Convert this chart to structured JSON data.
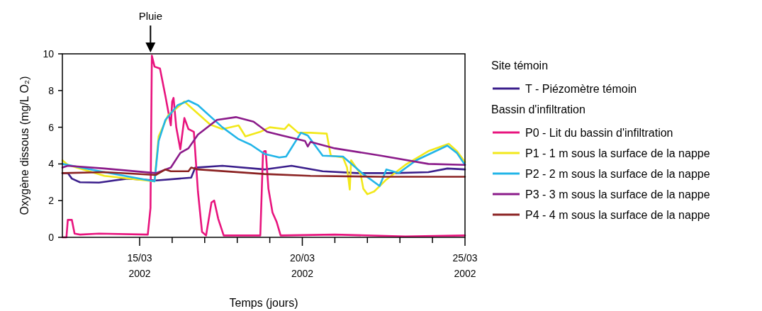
{
  "chart_data": {
    "type": "line",
    "xlabel": "Temps (jours)",
    "ylabel": "Oxygène dissous (mg/L O₂)",
    "xlim": [
      "2002-03-12T15:00",
      "2002-03-25T00:00"
    ],
    "xticks": [
      {
        "value": "2002-03-15",
        "label": "15/03\n2002"
      },
      {
        "value": "2002-03-16",
        "label": null
      },
      {
        "value": "2002-03-17",
        "label": null
      },
      {
        "value": "2002-03-18",
        "label": null
      },
      {
        "value": "2002-03-19",
        "label": null
      },
      {
        "value": "2002-03-20",
        "label": "20/03\n2002"
      },
      {
        "value": "2002-03-21",
        "label": null
      },
      {
        "value": "2002-03-22",
        "label": null
      },
      {
        "value": "2002-03-23",
        "label": null
      },
      {
        "value": "2002-03-24",
        "label": null
      },
      {
        "value": "2002-03-25",
        "label": "25/03\n2002"
      }
    ],
    "ylim": [
      0,
      10
    ],
    "yticks": [
      0,
      2,
      4,
      6,
      8,
      10
    ],
    "grid": false,
    "legend": "right",
    "marker": "none",
    "line_style": "solid",
    "annotations": [
      {
        "text": "Pluie",
        "x": "2002-03-15T08:00",
        "y": 10
      },
      "Site témoin",
      "Bassin d'infiltration"
    ],
    "series": [
      {
        "name": "T - Piézomètre témoin",
        "color": "#3b1f8c",
        "x": [
          "2002-03-12T15:00",
          "2002-03-12T19:00",
          "2002-03-12T22:00",
          "2002-03-13T04:00",
          "2002-03-13T18:00",
          "2002-03-14T15:00",
          "2002-03-15T12:00",
          "2002-03-16T14:00",
          "2002-03-16T17:00",
          "2002-03-17T13:00",
          "2002-03-18T20:00",
          "2002-03-19T16:00",
          "2002-03-20T15:00",
          "2002-03-21T17:00",
          "2002-03-22T19:00",
          "2002-03-23T21:00",
          "2002-03-24T11:00",
          "2002-03-25T00:00"
        ],
        "values": [
          3.5,
          3.5,
          3.2,
          3.0,
          2.98,
          3.2,
          3.1,
          3.25,
          3.8,
          3.9,
          3.7,
          3.9,
          3.6,
          3.5,
          3.5,
          3.55,
          3.75,
          3.7
        ]
      },
      {
        "name": "P0 - Lit du bassin d'infiltration",
        "color": "#e8147e",
        "x": [
          "2002-03-12T15:00",
          "2002-03-12T18:00",
          "2002-03-12T19:00",
          "2002-03-12T22:00",
          "2002-03-13T00:00",
          "2002-03-13T04:00",
          "2002-03-13T18:00",
          "2002-03-15T06:00",
          "2002-03-15T08:00",
          "2002-03-15T09:00",
          "2002-03-15T11:00",
          "2002-03-15T15:00",
          "2002-03-15T19:00",
          "2002-03-15T23:00",
          "2002-03-16T00:00",
          "2002-03-16T01:00",
          "2002-03-16T03:00",
          "2002-03-16T06:00",
          "2002-03-16T09:00",
          "2002-03-16T12:00",
          "2002-03-16T16:00",
          "2002-03-16T19:00",
          "2002-03-16T22:00",
          "2002-03-17T01:00",
          "2002-03-17T05:00",
          "2002-03-17T07:00",
          "2002-03-17T10:00",
          "2002-03-17T14:00",
          "2002-03-18T17:00",
          "2002-03-18T19:00",
          "2002-03-18T20:00",
          "2002-03-18T21:00",
          "2002-03-18T23:00",
          "2002-03-19T02:00",
          "2002-03-19T05:00",
          "2002-03-19T08:00",
          "2002-03-21T00:00",
          "2002-03-23T04:00",
          "2002-03-25T00:00"
        ],
        "values": [
          0,
          0,
          0.95,
          0.95,
          0.2,
          0.15,
          0.2,
          0.15,
          1.6,
          9.9,
          9.3,
          9.2,
          7.7,
          6.1,
          7.4,
          7.6,
          6.0,
          4.8,
          6.5,
          5.9,
          5.75,
          2.5,
          0.3,
          0.1,
          1.9,
          2.0,
          1.0,
          0.1,
          0.1,
          4.6,
          4.7,
          4.7,
          2.65,
          1.35,
          0.85,
          0.1,
          0.15,
          0.05,
          0.1
        ]
      },
      {
        "name": "P1 - 1 m sous la surface de la nappe",
        "color": "#f2e81a",
        "x": [
          "2002-03-12T15:00",
          "2002-03-12T19:00",
          "2002-03-13T22:00",
          "2002-03-15T11:00",
          "2002-03-15T14:00",
          "2002-03-15T21:00",
          "2002-03-16T09:00",
          "2002-03-16T12:00",
          "2002-03-17T04:00",
          "2002-03-17T13:00",
          "2002-03-18T01:00",
          "2002-03-18T06:00",
          "2002-03-18T17:00",
          "2002-03-19T00:00",
          "2002-03-19T11:00",
          "2002-03-19T14:00",
          "2002-03-19T21:00",
          "2002-03-20T06:00",
          "2002-03-20T18:00",
          "2002-03-20T21:00",
          "2002-03-21T06:00",
          "2002-03-21T09:00",
          "2002-03-21T11:00",
          "2002-03-21T12:00",
          "2002-03-21T19:00",
          "2002-03-21T21:00",
          "2002-03-22T00:00",
          "2002-03-22T05:00",
          "2002-03-22T14:00",
          "2002-03-23T04:00",
          "2002-03-23T21:00",
          "2002-03-24T12:00",
          "2002-03-24T18:00",
          "2002-03-25T00:00"
        ],
        "values": [
          4.2,
          3.95,
          3.35,
          3.05,
          5.5,
          6.65,
          7.4,
          7.2,
          6.15,
          5.9,
          6.1,
          5.5,
          5.75,
          6.0,
          5.9,
          6.15,
          5.7,
          5.7,
          5.65,
          4.45,
          4.35,
          3.8,
          2.6,
          4.2,
          3.45,
          2.65,
          2.35,
          2.5,
          3.15,
          3.95,
          4.7,
          5.1,
          4.7,
          4.1
        ]
      },
      {
        "name": "P2 - 2 m sous la surface de la nappe",
        "color": "#22b5e8",
        "x": [
          "2002-03-12T15:00",
          "2002-03-13T22:00",
          "2002-03-15T11:00",
          "2002-03-15T14:00",
          "2002-03-15T19:00",
          "2002-03-16T04:00",
          "2002-03-16T12:00",
          "2002-03-16T19:00",
          "2002-03-17T13:00",
          "2002-03-18T01:00",
          "2002-03-18T10:00",
          "2002-03-18T20:00",
          "2002-03-19T07:00",
          "2002-03-19T12:00",
          "2002-03-19T23:00",
          "2002-03-20T04:00",
          "2002-03-20T15:00",
          "2002-03-21T06:00",
          "2002-03-21T20:00",
          "2002-03-22T09:00",
          "2002-03-22T14:00",
          "2002-03-22T23:00",
          "2002-03-23T12:00",
          "2002-03-24T11:00",
          "2002-03-24T18:00",
          "2002-03-25T00:00"
        ],
        "values": [
          4.0,
          3.55,
          3.05,
          5.25,
          6.4,
          7.2,
          7.45,
          7.2,
          6.0,
          5.35,
          5.05,
          4.55,
          4.35,
          4.4,
          5.7,
          5.55,
          4.45,
          4.4,
          3.5,
          2.8,
          3.7,
          3.5,
          4.2,
          5.0,
          4.6,
          3.95
        ]
      },
      {
        "name": "P3 - 3 m sous la surface de la nappe",
        "color": "#8b1b8a",
        "x": [
          "2002-03-12T15:00",
          "2002-03-12T19:00",
          "2002-03-13T22:00",
          "2002-03-15T12:00",
          "2002-03-15T23:00",
          "2002-03-16T06:00",
          "2002-03-16T12:00",
          "2002-03-16T19:00",
          "2002-03-17T09:00",
          "2002-03-17T23:00",
          "2002-03-18T12:00",
          "2002-03-18T22:00",
          "2002-03-19T09:00",
          "2002-03-20T02:00",
          "2002-03-20T04:00",
          "2002-03-20T06:00",
          "2002-03-21T00:00",
          "2002-03-22T10:00",
          "2002-03-23T21:00",
          "2002-03-25T00:00"
        ],
        "values": [
          3.8,
          3.9,
          3.75,
          3.5,
          3.8,
          4.6,
          4.85,
          5.6,
          6.4,
          6.55,
          6.3,
          5.75,
          5.55,
          5.25,
          4.95,
          5.2,
          4.85,
          4.45,
          4.0,
          3.95
        ]
      },
      {
        "name": "P4 - 4 m sous la surface de la nappe",
        "color": "#8b2323",
        "x": [
          "2002-03-12T15:00",
          "2002-03-13T22:00",
          "2002-03-15T12:00",
          "2002-03-15T19:00",
          "2002-03-15T23:00",
          "2002-03-16T12:00",
          "2002-03-16T14:00",
          "2002-03-16T19:00",
          "2002-03-18T20:00",
          "2002-03-20T06:00",
          "2002-03-22T10:00",
          "2002-03-25T00:00"
        ],
        "values": [
          3.5,
          3.55,
          3.4,
          3.7,
          3.6,
          3.6,
          3.8,
          3.7,
          3.45,
          3.35,
          3.3,
          3.3
        ]
      }
    ]
  }
}
